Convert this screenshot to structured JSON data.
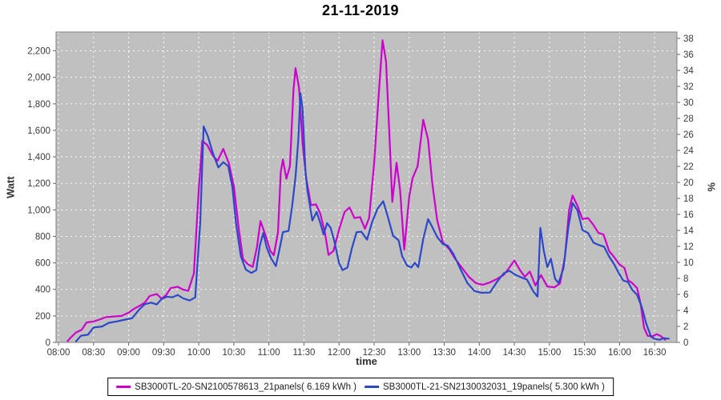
{
  "title": "21-11-2019",
  "chart_data": {
    "type": "line",
    "title": "21-11-2019",
    "xlabel": "time",
    "ylabel_left": "Watt",
    "ylabel_right": "%",
    "grid": true,
    "legend_position": "bottom",
    "plot_background": "#C0C0C0",
    "gridline_color": "#FFFFFF",
    "x_axis": {
      "ticks": [
        "08:00",
        "08:30",
        "09:00",
        "09:30",
        "10:00",
        "10:30",
        "11:00",
        "11:30",
        "12:00",
        "12:30",
        "13:00",
        "13:30",
        "14:00",
        "14:30",
        "15:00",
        "15:30",
        "16:00",
        "16:30"
      ]
    },
    "y_axis_left": {
      "ticks": [
        "0",
        "200",
        "400",
        "600",
        "800",
        "1,000",
        "1,200",
        "1,400",
        "1,600",
        "1,800",
        "2,000",
        "2,200"
      ],
      "range": [
        0,
        2342
      ]
    },
    "y_axis_right": {
      "ticks": [
        "0",
        "2",
        "4",
        "6",
        "8",
        "10",
        "12",
        "14",
        "16",
        "18",
        "20",
        "22",
        "24",
        "26",
        "28",
        "30",
        "32",
        "34",
        "36",
        "38"
      ],
      "range": [
        0,
        38.8
      ]
    },
    "series": [
      {
        "name": "SB3000TL-20-SN2100578613_21panels( 6.169 kWh )",
        "color": "#CC00CC",
        "energy_kwh": "6.169 kWh",
        "points_time_hours_watts": [
          [
            8.13,
            10
          ],
          [
            8.18,
            40
          ],
          [
            8.25,
            75
          ],
          [
            8.33,
            95
          ],
          [
            8.4,
            150
          ],
          [
            8.5,
            158
          ],
          [
            8.6,
            175
          ],
          [
            8.67,
            190
          ],
          [
            8.78,
            195
          ],
          [
            8.9,
            200
          ],
          [
            9.0,
            225
          ],
          [
            9.08,
            255
          ],
          [
            9.17,
            280
          ],
          [
            9.23,
            300
          ],
          [
            9.3,
            350
          ],
          [
            9.4,
            365
          ],
          [
            9.47,
            330
          ],
          [
            9.53,
            355
          ],
          [
            9.6,
            410
          ],
          [
            9.7,
            420
          ],
          [
            9.78,
            398
          ],
          [
            9.85,
            390
          ],
          [
            9.93,
            520
          ],
          [
            10.0,
            1150
          ],
          [
            10.05,
            1520
          ],
          [
            10.12,
            1490
          ],
          [
            10.2,
            1410
          ],
          [
            10.27,
            1370
          ],
          [
            10.35,
            1460
          ],
          [
            10.43,
            1350
          ],
          [
            10.5,
            1180
          ],
          [
            10.57,
            860
          ],
          [
            10.63,
            630
          ],
          [
            10.7,
            590
          ],
          [
            10.77,
            570
          ],
          [
            10.83,
            720
          ],
          [
            10.88,
            915
          ],
          [
            10.95,
            810
          ],
          [
            11.02,
            690
          ],
          [
            11.07,
            658
          ],
          [
            11.13,
            830
          ],
          [
            11.17,
            1290
          ],
          [
            11.2,
            1380
          ],
          [
            11.25,
            1235
          ],
          [
            11.3,
            1330
          ],
          [
            11.35,
            1900
          ],
          [
            11.38,
            2070
          ],
          [
            11.43,
            1920
          ],
          [
            11.48,
            1500
          ],
          [
            11.53,
            1240
          ],
          [
            11.6,
            1035
          ],
          [
            11.67,
            1042
          ],
          [
            11.73,
            975
          ],
          [
            11.8,
            825
          ],
          [
            11.85,
            660
          ],
          [
            11.92,
            690
          ],
          [
            12.0,
            850
          ],
          [
            12.08,
            985
          ],
          [
            12.15,
            1018
          ],
          [
            12.22,
            938
          ],
          [
            12.3,
            946
          ],
          [
            12.37,
            858
          ],
          [
            12.43,
            940
          ],
          [
            12.5,
            1350
          ],
          [
            12.57,
            1900
          ],
          [
            12.62,
            2280
          ],
          [
            12.67,
            2120
          ],
          [
            12.72,
            1550
          ],
          [
            12.76,
            1060
          ],
          [
            12.82,
            1355
          ],
          [
            12.87,
            1150
          ],
          [
            12.93,
            700
          ],
          [
            13.0,
            1100
          ],
          [
            13.05,
            1240
          ],
          [
            13.12,
            1330
          ],
          [
            13.2,
            1680
          ],
          [
            13.27,
            1530
          ],
          [
            13.33,
            1200
          ],
          [
            13.4,
            920
          ],
          [
            13.48,
            755
          ],
          [
            13.57,
            705
          ],
          [
            13.65,
            635
          ],
          [
            13.75,
            565
          ],
          [
            13.85,
            495
          ],
          [
            13.95,
            448
          ],
          [
            14.05,
            435
          ],
          [
            14.15,
            452
          ],
          [
            14.25,
            478
          ],
          [
            14.35,
            510
          ],
          [
            14.43,
            565
          ],
          [
            14.5,
            618
          ],
          [
            14.58,
            545
          ],
          [
            14.65,
            495
          ],
          [
            14.72,
            535
          ],
          [
            14.8,
            430
          ],
          [
            14.88,
            508
          ],
          [
            14.97,
            422
          ],
          [
            15.07,
            416
          ],
          [
            15.15,
            445
          ],
          [
            15.22,
            640
          ],
          [
            15.28,
            1000
          ],
          [
            15.33,
            1108
          ],
          [
            15.4,
            1030
          ],
          [
            15.47,
            930
          ],
          [
            15.55,
            938
          ],
          [
            15.62,
            892
          ],
          [
            15.7,
            826
          ],
          [
            15.77,
            815
          ],
          [
            15.85,
            690
          ],
          [
            15.92,
            645
          ],
          [
            16.0,
            588
          ],
          [
            16.07,
            562
          ],
          [
            16.12,
            470
          ],
          [
            16.18,
            448
          ],
          [
            16.25,
            410
          ],
          [
            16.3,
            290
          ],
          [
            16.35,
            110
          ],
          [
            16.4,
            50
          ],
          [
            16.47,
            46
          ],
          [
            16.53,
            62
          ],
          [
            16.58,
            50
          ],
          [
            16.65,
            20
          ]
        ]
      },
      {
        "name": "SB3000TL-21-SN2130032031_19panels( 5.300 kWh )",
        "color": "#2B48C8",
        "energy_kwh": "5.300 kWh",
        "points_time_hours_watts": [
          [
            8.25,
            8
          ],
          [
            8.32,
            50
          ],
          [
            8.42,
            58
          ],
          [
            8.5,
            112
          ],
          [
            8.62,
            120
          ],
          [
            8.72,
            148
          ],
          [
            8.83,
            158
          ],
          [
            8.95,
            172
          ],
          [
            9.05,
            182
          ],
          [
            9.15,
            248
          ],
          [
            9.23,
            288
          ],
          [
            9.32,
            300
          ],
          [
            9.4,
            286
          ],
          [
            9.47,
            328
          ],
          [
            9.55,
            345
          ],
          [
            9.62,
            340
          ],
          [
            9.7,
            358
          ],
          [
            9.78,
            332
          ],
          [
            9.87,
            316
          ],
          [
            9.95,
            340
          ],
          [
            10.02,
            900
          ],
          [
            10.07,
            1630
          ],
          [
            10.13,
            1555
          ],
          [
            10.2,
            1430
          ],
          [
            10.28,
            1320
          ],
          [
            10.35,
            1360
          ],
          [
            10.42,
            1330
          ],
          [
            10.48,
            1170
          ],
          [
            10.53,
            905
          ],
          [
            10.6,
            650
          ],
          [
            10.67,
            550
          ],
          [
            10.75,
            524
          ],
          [
            10.82,
            545
          ],
          [
            10.87,
            730
          ],
          [
            10.92,
            825
          ],
          [
            10.97,
            715
          ],
          [
            11.03,
            635
          ],
          [
            11.1,
            575
          ],
          [
            11.15,
            700
          ],
          [
            11.2,
            832
          ],
          [
            11.28,
            842
          ],
          [
            11.33,
            1020
          ],
          [
            11.38,
            1250
          ],
          [
            11.42,
            1530
          ],
          [
            11.45,
            1880
          ],
          [
            11.48,
            1760
          ],
          [
            11.52,
            1300
          ],
          [
            11.55,
            1145
          ],
          [
            11.62,
            920
          ],
          [
            11.68,
            985
          ],
          [
            11.73,
            905
          ],
          [
            11.78,
            815
          ],
          [
            11.83,
            900
          ],
          [
            11.88,
            865
          ],
          [
            11.93,
            770
          ],
          [
            12.0,
            600
          ],
          [
            12.05,
            545
          ],
          [
            12.12,
            565
          ],
          [
            12.18,
            705
          ],
          [
            12.25,
            832
          ],
          [
            12.32,
            835
          ],
          [
            12.4,
            775
          ],
          [
            12.47,
            905
          ],
          [
            12.55,
            1010
          ],
          [
            12.63,
            1065
          ],
          [
            12.7,
            940
          ],
          [
            12.77,
            805
          ],
          [
            12.85,
            770
          ],
          [
            12.9,
            650
          ],
          [
            12.97,
            580
          ],
          [
            13.03,
            565
          ],
          [
            13.08,
            600
          ],
          [
            13.13,
            568
          ],
          [
            13.2,
            780
          ],
          [
            13.27,
            930
          ],
          [
            13.33,
            870
          ],
          [
            13.4,
            795
          ],
          [
            13.48,
            742
          ],
          [
            13.55,
            730
          ],
          [
            13.63,
            668
          ],
          [
            13.73,
            555
          ],
          [
            13.83,
            448
          ],
          [
            13.93,
            388
          ],
          [
            14.03,
            374
          ],
          [
            14.15,
            376
          ],
          [
            14.25,
            455
          ],
          [
            14.35,
            522
          ],
          [
            14.43,
            540
          ],
          [
            14.52,
            508
          ],
          [
            14.6,
            490
          ],
          [
            14.68,
            474
          ],
          [
            14.77,
            385
          ],
          [
            14.83,
            345
          ],
          [
            14.87,
            865
          ],
          [
            14.92,
            690
          ],
          [
            14.97,
            568
          ],
          [
            15.02,
            632
          ],
          [
            15.08,
            480
          ],
          [
            15.13,
            448
          ],
          [
            15.2,
            560
          ],
          [
            15.27,
            870
          ],
          [
            15.33,
            1052
          ],
          [
            15.4,
            995
          ],
          [
            15.47,
            848
          ],
          [
            15.55,
            826
          ],
          [
            15.63,
            752
          ],
          [
            15.7,
            736
          ],
          [
            15.78,
            722
          ],
          [
            15.85,
            648
          ],
          [
            15.92,
            592
          ],
          [
            15.98,
            532
          ],
          [
            16.05,
            468
          ],
          [
            16.12,
            455
          ],
          [
            16.18,
            398
          ],
          [
            16.25,
            358
          ],
          [
            16.32,
            262
          ],
          [
            16.38,
            140
          ],
          [
            16.45,
            42
          ],
          [
            16.5,
            26
          ],
          [
            16.57,
            20
          ],
          [
            16.63,
            32
          ],
          [
            16.7,
            28
          ]
        ]
      }
    ]
  }
}
